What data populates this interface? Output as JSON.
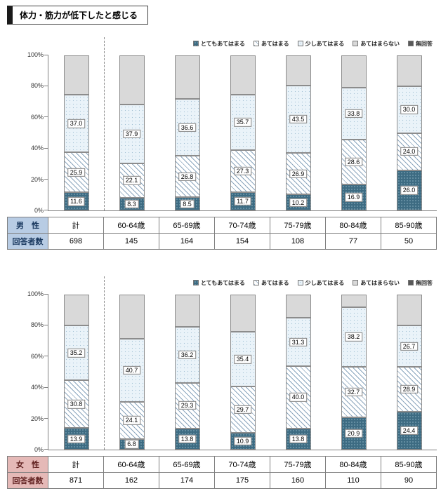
{
  "page_title": "体力・筋力が低下したと感じる",
  "axis": {
    "ticks": [
      "0%",
      "20%",
      "40%",
      "60%",
      "80%",
      "100%"
    ],
    "ylim": [
      0,
      100
    ]
  },
  "chart_data": [
    {
      "type": "stacked-bar-100",
      "group_label": "男　性",
      "respondents_label": "回答者数",
      "header_bg": "#b8cce4",
      "header_fg": "#17365d",
      "categories": [
        "計",
        "60-64歳",
        "65-69歳",
        "70-74歳",
        "75-79歳",
        "80-84歳",
        "85-90歳"
      ],
      "respondents": [
        "698",
        "145",
        "164",
        "154",
        "108",
        "77",
        "50"
      ],
      "series": [
        {
          "name": "とてもあてはまる",
          "labeled": true,
          "values": [
            11.6,
            8.3,
            8.5,
            11.7,
            10.2,
            16.9,
            26.0
          ]
        },
        {
          "name": "あてはまる",
          "labeled": true,
          "values": [
            25.9,
            22.1,
            26.8,
            27.3,
            26.9,
            28.6,
            24.0
          ]
        },
        {
          "name": "少しあてはまる",
          "labeled": true,
          "values": [
            37.0,
            37.9,
            36.6,
            35.7,
            43.5,
            33.8,
            30.0
          ]
        },
        {
          "name": "あてはまらない",
          "labeled": false,
          "values": [
            25.5,
            31.7,
            28.1,
            25.3,
            19.4,
            20.7,
            20.0
          ]
        },
        {
          "name": "無回答",
          "labeled": false,
          "values": [
            0,
            0,
            0,
            0,
            0,
            0,
            0
          ]
        }
      ]
    },
    {
      "type": "stacked-bar-100",
      "group_label": "女　性",
      "respondents_label": "回答者数",
      "header_bg": "#e5b9b7",
      "header_fg": "#632423",
      "categories": [
        "計",
        "60-64歳",
        "65-69歳",
        "70-74歳",
        "75-79歳",
        "80-84歳",
        "85-90歳"
      ],
      "respondents": [
        "871",
        "162",
        "174",
        "175",
        "160",
        "110",
        "90"
      ],
      "series": [
        {
          "name": "とてもあてはまる",
          "labeled": true,
          "values": [
            13.9,
            6.8,
            13.8,
            10.9,
            13.8,
            20.9,
            24.4
          ]
        },
        {
          "name": "あてはまる",
          "labeled": true,
          "values": [
            30.8,
            24.1,
            29.3,
            29.7,
            40.0,
            32.7,
            28.9
          ]
        },
        {
          "name": "少しあてはまる",
          "labeled": true,
          "values": [
            35.2,
            40.7,
            36.2,
            35.4,
            31.3,
            38.2,
            26.7
          ]
        },
        {
          "name": "あてはまらない",
          "labeled": false,
          "values": [
            20.1,
            28.4,
            20.7,
            24.0,
            14.9,
            8.2,
            20.0
          ]
        },
        {
          "name": "無回答",
          "labeled": false,
          "values": [
            0,
            0,
            0,
            0,
            0,
            0,
            0
          ]
        }
      ]
    }
  ]
}
